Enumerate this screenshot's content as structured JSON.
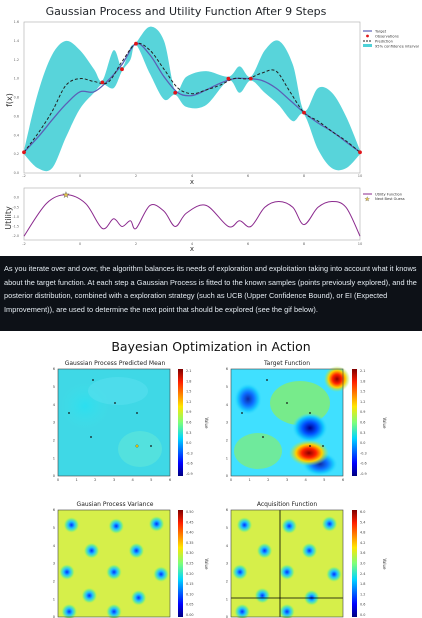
{
  "top_figure": {
    "title": "Gaussian Process and Utility Function After 9 Steps",
    "gp_panel": {
      "ylabel": "f(x)",
      "xlabel": "x",
      "legend": [
        "Target",
        "Observations",
        "Prediction",
        "95% confidence interval"
      ],
      "y_ticks": [
        "1.6",
        "1.4",
        "1.2",
        "1.0",
        "0.8",
        "0.6",
        "0.4",
        "0.2",
        "0.0"
      ],
      "x_ticks": [
        "-2",
        "0",
        "2",
        "4",
        "6",
        "8",
        "10"
      ]
    },
    "utility_panel": {
      "ylabel": "Utility",
      "xlabel": "x",
      "legend": [
        "Utility Function",
        "Next Best Guess"
      ],
      "y_ticks": [
        "0.0",
        "-0.5",
        "-1.0",
        "-1.5",
        "-2.0"
      ],
      "x_ticks": [
        "-2",
        "0",
        "2",
        "4",
        "6",
        "8",
        "10"
      ]
    }
  },
  "chart_data": [
    {
      "type": "line",
      "title": "Gaussian Process and Utility Function After 9 Steps",
      "xlabel": "x",
      "ylabel": "f(x)",
      "xlim": [
        -2,
        10
      ],
      "ylim": [
        0,
        1.6
      ],
      "series": [
        {
          "name": "Target",
          "x": [
            -2,
            -1.5,
            -1,
            -0.5,
            0,
            0.5,
            1,
            1.5,
            2,
            2.5,
            3,
            3.5,
            4,
            4.5,
            5,
            5.5,
            6,
            6.5,
            7,
            7.5,
            8,
            8.5,
            9,
            9.5,
            10
          ],
          "values": [
            0.22,
            0.38,
            0.56,
            0.73,
            0.86,
            0.86,
            0.98,
            1.15,
            1.37,
            1.25,
            1.02,
            0.85,
            0.82,
            0.88,
            0.95,
            1.0,
            1.0,
            0.98,
            0.9,
            0.77,
            0.64,
            0.53,
            0.44,
            0.33,
            0.22
          ]
        },
        {
          "name": "Prediction",
          "x": [
            -2,
            -1.5,
            -1,
            -0.5,
            0,
            0.5,
            1,
            1.5,
            2,
            2.5,
            3,
            3.5,
            4,
            4.5,
            5,
            5.5,
            6,
            6.5,
            7,
            7.5,
            8,
            8.5,
            9,
            9.5,
            10
          ],
          "values": [
            0.22,
            0.42,
            0.65,
            0.93,
            1.0,
            0.97,
            0.96,
            1.18,
            1.37,
            1.3,
            1.1,
            0.9,
            0.84,
            0.88,
            0.93,
            1.0,
            1.0,
            1.06,
            1.08,
            0.86,
            0.64,
            0.55,
            0.44,
            0.34,
            0.22
          ]
        },
        {
          "name": "Observations",
          "x": [
            -2,
            0.8,
            1.5,
            2,
            3.4,
            5.3,
            6.1,
            8,
            10
          ],
          "values": [
            0.22,
            0.96,
            1.1,
            1.37,
            0.85,
            1.0,
            1.0,
            0.64,
            0.22
          ]
        }
      ],
      "confidence_interval": {
        "x": [
          -2,
          -1.5,
          -1,
          -0.5,
          0,
          0.5,
          0.8,
          1.2,
          1.5,
          1.8,
          2,
          2.5,
          3,
          3.4,
          3.8,
          4.5,
          5.3,
          5.7,
          6.1,
          6.6,
          7.1,
          7.6,
          8,
          8.5,
          9,
          9.5,
          10
        ],
        "upper": [
          0.24,
          0.85,
          1.25,
          1.4,
          1.3,
          1.1,
          0.98,
          1.3,
          1.12,
          1.33,
          1.38,
          1.55,
          1.4,
          0.87,
          1.02,
          1.08,
          1.02,
          1.13,
          1.02,
          1.3,
          1.4,
          1.15,
          0.66,
          0.9,
          0.85,
          0.6,
          0.24
        ],
        "lower": [
          0.2,
          0.05,
          0.05,
          0.38,
          0.68,
          0.85,
          0.94,
          0.9,
          1.08,
          1.2,
          1.36,
          1.05,
          0.78,
          0.83,
          0.7,
          0.72,
          0.98,
          0.85,
          0.98,
          0.85,
          0.72,
          0.55,
          0.62,
          0.25,
          0.05,
          0.05,
          0.2
        ]
      },
      "legend_position": "top-right",
      "grid": false
    },
    {
      "type": "line",
      "title": "",
      "xlabel": "x",
      "ylabel": "Utility",
      "xlim": [
        -2,
        10
      ],
      "ylim": [
        -2.2,
        0.4
      ],
      "series": [
        {
          "name": "Utility Function",
          "x": [
            -2,
            -1.2,
            -0.5,
            0.2,
            0.8,
            1.2,
            1.5,
            1.8,
            2,
            2.5,
            3,
            3.4,
            3.8,
            4.5,
            5.3,
            5.7,
            6.1,
            6.6,
            7.1,
            7.6,
            8,
            8.5,
            9,
            9.5,
            10
          ],
          "values": [
            -2.0,
            -0.3,
            0.15,
            -0.3,
            -1.6,
            -1.1,
            -1.5,
            -1.2,
            -1.6,
            -0.4,
            -0.7,
            -1.5,
            -0.8,
            -0.4,
            -1.5,
            -1.2,
            -1.5,
            -0.5,
            -0.2,
            -0.5,
            -1.4,
            -0.5,
            -0.2,
            -0.5,
            -2.0
          ]
        },
        {
          "name": "Next Best Guess",
          "x": [
            -0.5
          ],
          "values": [
            0.15
          ]
        }
      ],
      "legend_position": "top-right",
      "grid": false
    }
  ],
  "paragraph": {
    "text": "As you iterate over and over, the algorithm balances its needs of exploration and exploitation taking into account what it knows about the target function. At each step a Gaussian Process is fitted to the known samples (points previously explored), and the posterior distribution, combined with a exploration strategy (such as UCB (Upper Confidence Bound), or EI (Expected Improvement)), are used to determine the next point that should be explored (see the gif below)."
  },
  "bottom_figure": {
    "title": "Bayesian Optimization in Action",
    "panels": [
      {
        "title": "Gaussian Process Predicted Mean",
        "cbar_label": "Value",
        "cbar_ticks": [
          "2.1",
          "1.8",
          "1.5",
          "1.2",
          "0.9",
          "0.6",
          "0.3",
          "0.0",
          "-0.3",
          "-0.6",
          "-0.9"
        ]
      },
      {
        "title": "Target Function",
        "cbar_label": "Value",
        "cbar_ticks": [
          "2.1",
          "1.8",
          "1.5",
          "1.2",
          "0.9",
          "0.6",
          "0.3",
          "0.0",
          "-0.3",
          "-0.6",
          "-0.9"
        ]
      },
      {
        "title": "Gausian Process Variance",
        "cbar_label": "Value",
        "cbar_ticks": [
          "0.50",
          "0.45",
          "0.40",
          "0.35",
          "0.30",
          "0.25",
          "0.20",
          "0.15",
          "0.10",
          "0.05",
          "0.00"
        ]
      },
      {
        "title": "Acquisition Function",
        "cbar_label": "Value",
        "cbar_ticks": [
          "6.0",
          "5.4",
          "4.8",
          "4.2",
          "3.6",
          "3.0",
          "2.4",
          "1.8",
          "1.2",
          "0.6",
          "0.0"
        ]
      }
    ],
    "axis_ticks": [
      "0",
      "1",
      "2",
      "3",
      "4",
      "5",
      "6"
    ],
    "y_axis_ticks": [
      "6",
      "5",
      "4",
      "3",
      "2",
      "1",
      "0"
    ]
  },
  "colors": {
    "page_bg": "#0d1117",
    "text": "#e6edf3",
    "confidence": "#4fd2d8",
    "target": "#5b5fb6",
    "prediction": "#222222",
    "observation": "#e0151a",
    "utility": "#8b2a8e",
    "star": "#e6c34a"
  }
}
